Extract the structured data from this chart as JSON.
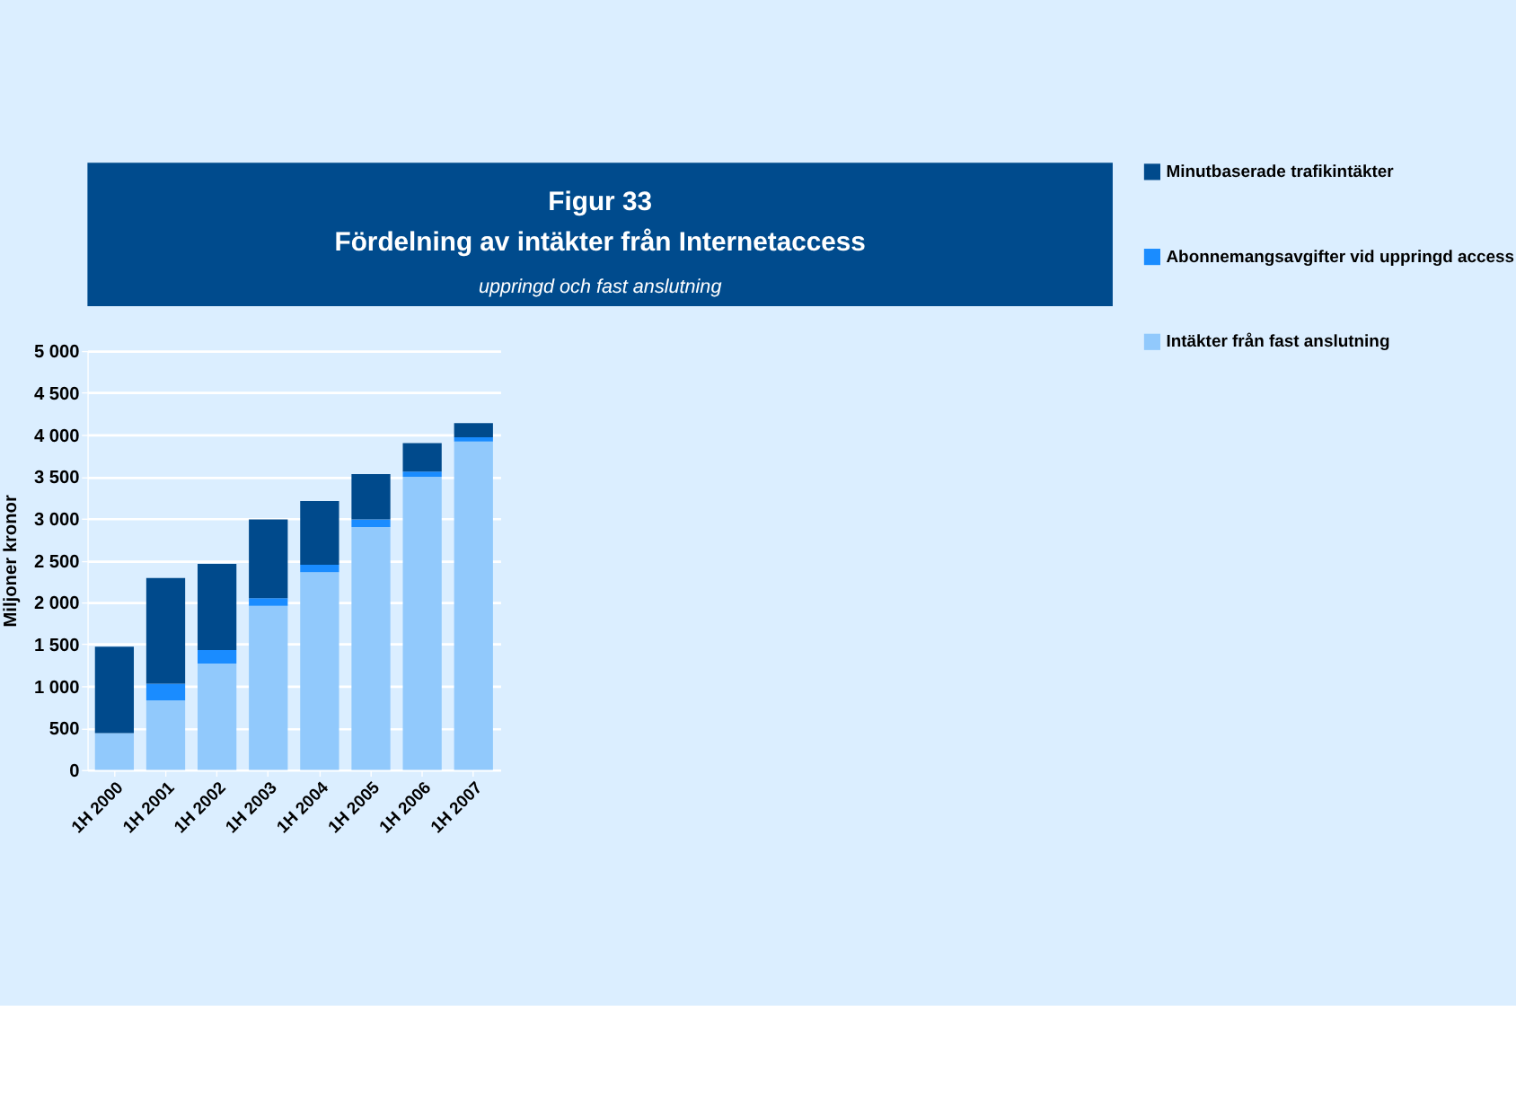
{
  "chart_data": {
    "type": "bar",
    "stacked": true,
    "title": "Figur 33\nFördelning av intäkter från Internetaccess",
    "subtitle": "uppringd och fast anslutning",
    "ylabel": "Miljoner kronor",
    "categories": [
      "1H 2000",
      "1H 2001",
      "1H 2002",
      "1H 2003",
      "1H 2004",
      "1H 2005",
      "1H 2006",
      "1H 2007"
    ],
    "series": [
      {
        "name": "Intäkter från fast anslutning",
        "color": "#91c9fc",
        "values": [
          440,
          830,
          1270,
          1960,
          2360,
          2900,
          3500,
          3920
        ]
      },
      {
        "name": "Abonnemangsavgifter vid uppringd access",
        "color": "#1a8cff",
        "values": [
          0,
          200,
          160,
          90,
          90,
          90,
          60,
          50
        ]
      },
      {
        "name": "Minutbaserade trafikintäkter",
        "color": "#004a8c",
        "values": [
          1030,
          1260,
          1030,
          940,
          760,
          540,
          340,
          170
        ]
      }
    ],
    "ylim": [
      0,
      5000
    ],
    "yticks": [
      0,
      500,
      {
        "value": 1000,
        "label": "1 000"
      },
      {
        "value": 1500,
        "label": "1 500"
      },
      {
        "value": 2000,
        "label": "2 000"
      },
      {
        "value": 2500,
        "label": "2 500"
      },
      {
        "value": 3000,
        "label": "3 000"
      },
      {
        "value": 3500,
        "label": "3 500"
      },
      {
        "value": 4000,
        "label": "4 000"
      },
      {
        "value": 4500,
        "label": "4 500"
      },
      {
        "value": 5000,
        "label": "5 000"
      }
    ],
    "grid": "y",
    "legend": "right"
  }
}
